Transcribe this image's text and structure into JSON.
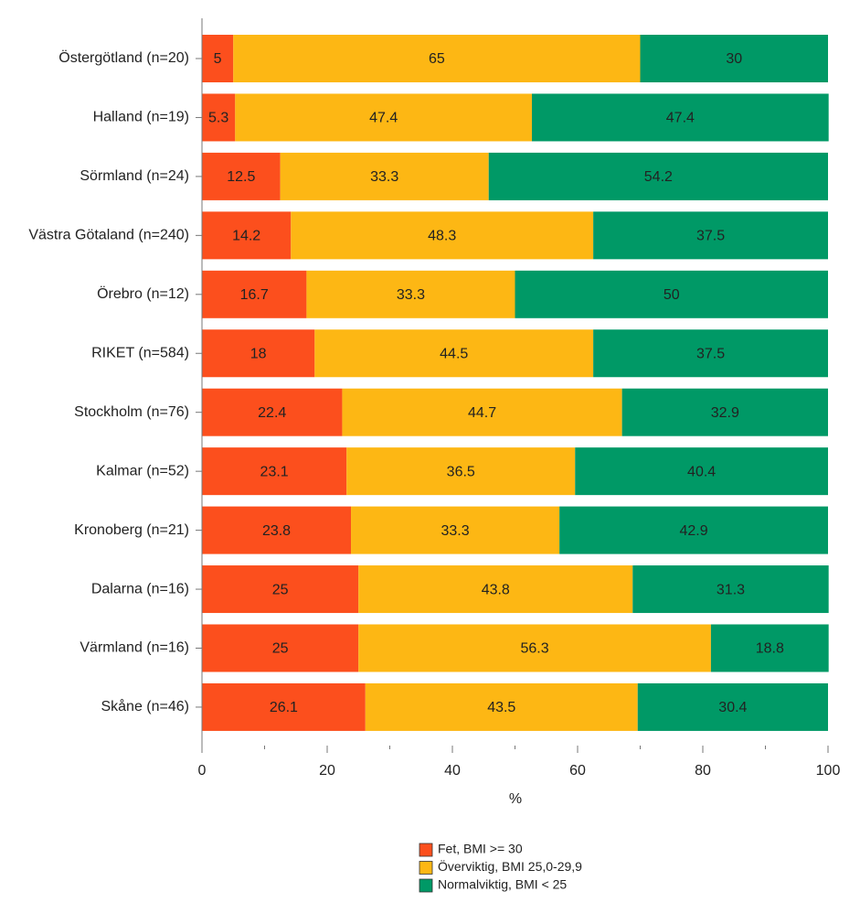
{
  "chart_data": {
    "type": "bar",
    "orientation": "horizontal",
    "stacked": true,
    "categories": [
      "Östergötland (n=20)",
      "Halland (n=19)",
      "Sörmland (n=24)",
      "Västra Götaland (n=240)",
      "Örebro (n=12)",
      "RIKET (n=584)",
      "Stockholm (n=76)",
      "Kalmar (n=52)",
      "Kronoberg (n=21)",
      "Dalarna (n=16)",
      "Värmland (n=16)",
      "Skåne (n=46)"
    ],
    "series": [
      {
        "name": "Fet, BMI >= 30",
        "color": "#fc4f1d",
        "values": [
          5,
          5.3,
          12.5,
          14.2,
          16.7,
          18,
          22.4,
          23.1,
          23.8,
          25,
          25,
          26.1
        ]
      },
      {
        "name": "Överviktig, BMI 25,0-29,9",
        "color": "#fdb714",
        "values": [
          65,
          47.4,
          33.3,
          48.3,
          33.3,
          44.5,
          44.7,
          36.5,
          33.3,
          43.8,
          56.3,
          43.5
        ]
      },
      {
        "name": "Normalviktig, BMI < 25",
        "color": "#009966",
        "values": [
          30,
          47.4,
          54.2,
          37.5,
          50,
          37.5,
          32.9,
          40.4,
          42.9,
          31.3,
          18.8,
          30.4
        ]
      }
    ],
    "xlabel": "%",
    "xlim": [
      0,
      100
    ],
    "xticks": [
      0,
      20,
      40,
      60,
      80,
      100
    ],
    "xminor_ticks": [
      10,
      30,
      50,
      70,
      90
    ],
    "legend": "bottom"
  }
}
